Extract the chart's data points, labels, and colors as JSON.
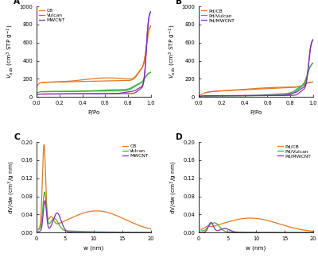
{
  "background_color": "#ffffff",
  "panel_bg": "#ffffff",
  "panel_A": {
    "label": "A",
    "xlabel": "P/Po",
    "ylabel": "$V_{ads}$ (cm$^{3}$ STP g$^{-1}$)",
    "xlim": [
      0.0,
      1.0
    ],
    "ylim": [
      0,
      1000
    ],
    "yticks": [
      0,
      200,
      400,
      600,
      800,
      1000
    ],
    "xticks": [
      0.0,
      0.2,
      0.4,
      0.6,
      0.8,
      1.0
    ],
    "series": [
      {
        "label": "CB",
        "color": "#e07820"
      },
      {
        "label": "Vulcan",
        "color": "#40b040"
      },
      {
        "label": "MWCNT",
        "color": "#8030b0"
      }
    ]
  },
  "panel_B": {
    "label": "B",
    "xlabel": "P/Po",
    "ylabel": "$V_{ads}$ (cm$^{3}$ STP g$^{-1}$)",
    "xlim": [
      0.0,
      1.0
    ],
    "ylim": [
      0,
      1000
    ],
    "yticks": [
      0,
      200,
      400,
      600,
      800,
      1000
    ],
    "xticks": [
      0.0,
      0.2,
      0.4,
      0.6,
      0.8,
      1.0
    ],
    "series": [
      {
        "label": "Pd/CB",
        "color": "#e07820"
      },
      {
        "label": "Pd/Vulcan",
        "color": "#40b040"
      },
      {
        "label": "Pd/MWCNT",
        "color": "#8030b0"
      }
    ]
  },
  "panel_C": {
    "label": "C",
    "xlabel": "w (nm)",
    "ylabel": "dV/dw (cm$^{3}$/g nm)",
    "xlim": [
      0,
      20
    ],
    "ylim": [
      0,
      0.2
    ],
    "yticks": [
      0.0,
      0.04,
      0.08,
      0.12,
      0.16,
      0.2
    ],
    "xticks": [
      0,
      5,
      10,
      15,
      20
    ],
    "series": [
      {
        "label": "CB",
        "color": "#e07820"
      },
      {
        "label": "Vulcan",
        "color": "#40b040"
      },
      {
        "label": "MWCNT",
        "color": "#8030b0"
      }
    ]
  },
  "panel_D": {
    "label": "D",
    "xlabel": "w (nm)",
    "ylabel": "dV/dw (cm$^{3}$/g nm)",
    "xlim": [
      0,
      20
    ],
    "ylim": [
      0,
      0.2
    ],
    "yticks": [
      0.0,
      0.04,
      0.08,
      0.12,
      0.16,
      0.2
    ],
    "xticks": [
      0,
      5,
      10,
      15,
      20
    ],
    "series": [
      {
        "label": "Pd/CB",
        "color": "#e07820"
      },
      {
        "label": "Pd/Vulcan",
        "color": "#40b040"
      },
      {
        "label": "Pd/MWCNT",
        "color": "#8030b0"
      }
    ]
  }
}
